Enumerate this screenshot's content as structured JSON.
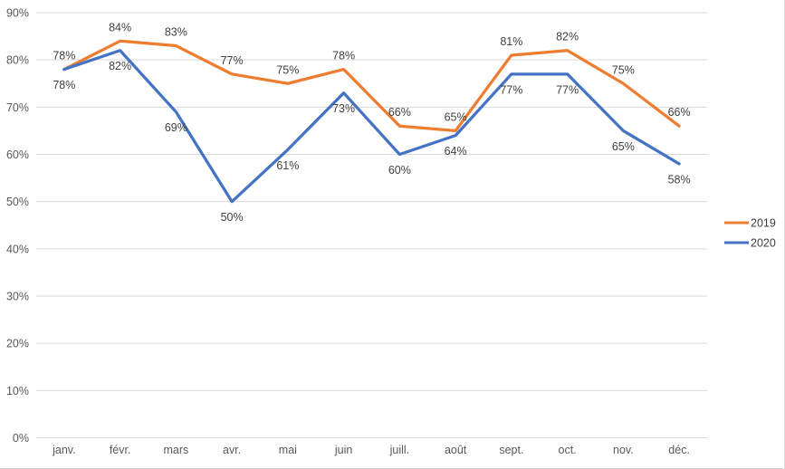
{
  "chart_data": {
    "type": "line",
    "title": "",
    "xlabel": "",
    "ylabel": "",
    "categories": [
      "janv.",
      "févr.",
      "mars",
      "avr.",
      "mai",
      "juin",
      "juill.",
      "août",
      "sept.",
      "oct.",
      "nov.",
      "déc."
    ],
    "series": [
      {
        "name": "2019",
        "color": "#ED7D31",
        "values": [
          78,
          84,
          83,
          77,
          75,
          78,
          66,
          65,
          81,
          82,
          75,
          66
        ],
        "data_labels": [
          "78%",
          "84%",
          "83%",
          "77%",
          "75%",
          "78%",
          "66%",
          "65%",
          "81%",
          "82%",
          "75%",
          "66%"
        ],
        "label_position": "above"
      },
      {
        "name": "2020",
        "color": "#4472C4",
        "values": [
          78,
          82,
          69,
          50,
          61,
          73,
          60,
          64,
          77,
          77,
          65,
          58
        ],
        "data_labels": [
          "78%",
          "82%",
          "69%",
          "50%",
          "61%",
          "73%",
          "60%",
          "64%",
          "77%",
          "77%",
          "65%",
          "58%"
        ],
        "label_position": "below"
      }
    ],
    "y_ticks": [
      "0%",
      "10%",
      "20%",
      "30%",
      "40%",
      "50%",
      "60%",
      "70%",
      "80%",
      "90%"
    ],
    "y_min": 0,
    "y_max": 90,
    "y_step": 10,
    "grid": true,
    "legend_position": "right",
    "colors": {
      "gridline": "#D9D9D9",
      "axis_line": "#D9D9D9",
      "axis_text": "#595959",
      "data_label_text": "#404040",
      "legend_text": "#404040",
      "background": "#FFFFFF",
      "frame_border": "#D9D9D9"
    }
  }
}
